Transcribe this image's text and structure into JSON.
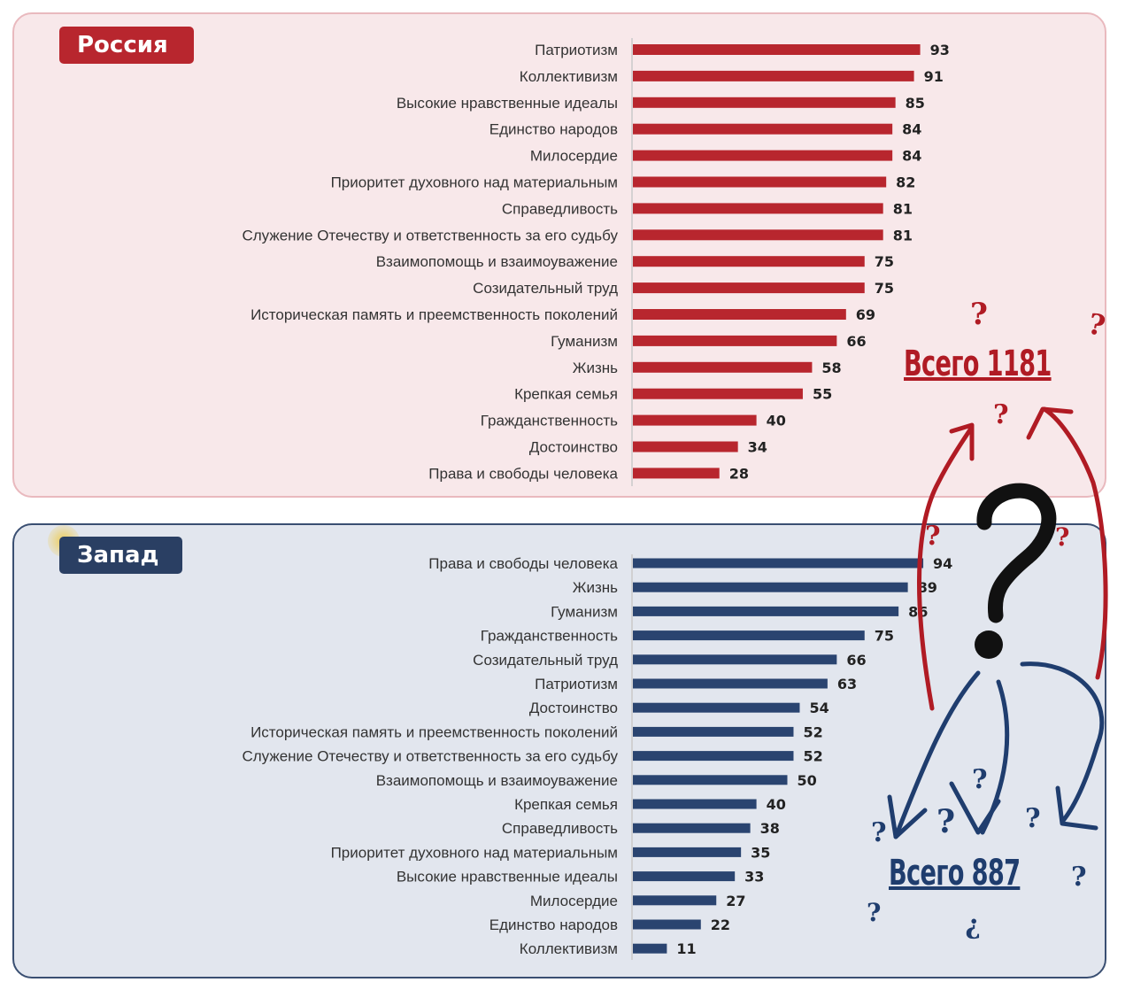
{
  "chart_data": [
    {
      "type": "bar",
      "orientation": "horizontal",
      "title": "Россия",
      "color": "#b8262e",
      "categories": [
        "Патриотизм",
        "Коллективизм",
        "Высокие нравственные идеалы",
        "Единство народов",
        "Милосердие",
        "Приоритет духовного над материальным",
        "Справедливость",
        "Служение Отечеству и ответственность за его судьбу",
        "Взаимопомощь и взаимоуважение",
        "Созидательный труд",
        "Историческая память и преемственность поколений",
        "Гуманизм",
        "Жизнь",
        "Крепкая семья",
        "Гражданственность",
        "Достоинство",
        "Права и свободы человека"
      ],
      "values": [
        93,
        91,
        85,
        84,
        84,
        82,
        81,
        81,
        75,
        75,
        69,
        66,
        58,
        55,
        40,
        34,
        28
      ],
      "xlim": [
        0,
        100
      ]
    },
    {
      "type": "bar",
      "orientation": "horizontal",
      "title": "Запад",
      "color": "#2a4470",
      "categories": [
        "Права и свободы человека",
        "Жизнь",
        "Гуманизм",
        "Гражданственность",
        "Созидательный труд",
        "Патриотизм",
        "Достоинство",
        "Историческая память и преемственность поколений",
        "Служение Отечеству и ответственность за его судьбу",
        "Взаимопомощь и взаимоуважение",
        "Крепкая семья",
        "Справедливость",
        "Приоритет духовного над материальным",
        "Высокие нравственные идеалы",
        "Милосердие",
        "Единство народов",
        "Коллективизм"
      ],
      "values": [
        94,
        89,
        86,
        75,
        66,
        63,
        54,
        52,
        52,
        50,
        40,
        38,
        35,
        33,
        27,
        22,
        11
      ],
      "xlim": [
        0,
        100
      ]
    }
  ],
  "annotations": {
    "russia_total": "Всего 1181",
    "west_total": "Всего 887",
    "russia_color": "#b01b24",
    "west_color": "#1f3d6e"
  }
}
